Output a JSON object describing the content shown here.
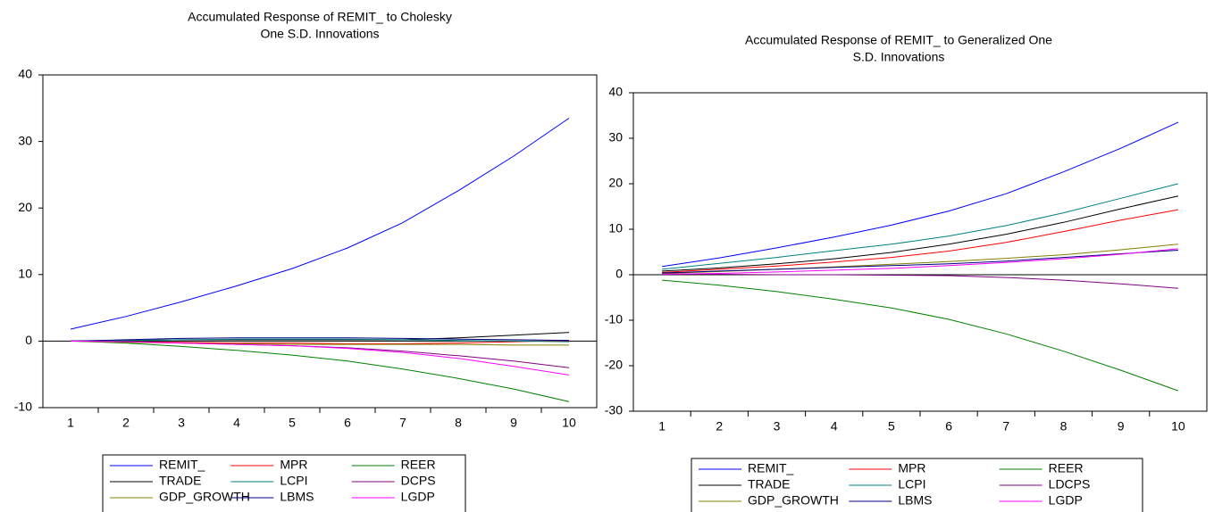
{
  "chart_data": [
    {
      "type": "line",
      "title": [
        "Accumulated Response of REMIT_ to Cholesky",
        "One S.D. Innovations"
      ],
      "categories": [
        1,
        2,
        3,
        4,
        5,
        6,
        7,
        8,
        9,
        10
      ],
      "ylim": [
        -10,
        40
      ],
      "yticks": [
        -10,
        0,
        10,
        20,
        30,
        40
      ],
      "series": [
        {
          "name": "REMIT_",
          "color": "#0000ff",
          "values": [
            1.8,
            3.7,
            5.9,
            8.3,
            10.9,
            14.0,
            17.8,
            22.6,
            27.8,
            33.5
          ]
        },
        {
          "name": "MPR",
          "color": "#ff0000",
          "values": [
            0,
            -0.1,
            -0.2,
            -0.3,
            -0.3,
            -0.4,
            -0.4,
            -0.3,
            -0.1,
            0.1
          ]
        },
        {
          "name": "REER",
          "color": "#008000",
          "values": [
            0,
            -0.3,
            -0.8,
            -1.4,
            -2.1,
            -3.0,
            -4.2,
            -5.6,
            -7.2,
            -9.1
          ]
        },
        {
          "name": "TRADE",
          "color": "#000000",
          "values": [
            0,
            0.1,
            0.2,
            0.2,
            0.2,
            0.2,
            0.2,
            0.5,
            0.9,
            1.3
          ]
        },
        {
          "name": "LCPI",
          "color": "#008080",
          "values": [
            0,
            0.1,
            0.2,
            0.3,
            0.3,
            0.3,
            0.2,
            0.1,
            0,
            -0.1
          ]
        },
        {
          "name": "DCPS",
          "color": "#800080",
          "values": [
            0,
            -0.1,
            -0.3,
            -0.5,
            -0.7,
            -1.0,
            -1.5,
            -2.2,
            -3.0,
            -4.0
          ]
        },
        {
          "name": "GDP_GROWTH",
          "color": "#808000",
          "values": [
            0,
            -0.2,
            -0.3,
            -0.4,
            -0.5,
            -0.5,
            -0.5,
            -0.5,
            -0.6,
            -0.6
          ]
        },
        {
          "name": "LBMS",
          "color": "#000080",
          "values": [
            0,
            0.2,
            0.4,
            0.5,
            0.5,
            0.5,
            0.4,
            0.3,
            0.2,
            0.1
          ]
        },
        {
          "name": "LGDP",
          "color": "#ff00ff",
          "values": [
            0,
            -0.1,
            -0.3,
            -0.5,
            -0.7,
            -1.1,
            -1.7,
            -2.6,
            -3.8,
            -5.1
          ]
        }
      ]
    },
    {
      "type": "line",
      "title": [
        "Accumulated Response of REMIT_ to Generalized One",
        "S.D. Innovations"
      ],
      "categories": [
        1,
        2,
        3,
        4,
        5,
        6,
        7,
        8,
        9,
        10
      ],
      "ylim": [
        -30,
        40
      ],
      "yticks": [
        -30,
        -20,
        -10,
        0,
        10,
        20,
        30,
        40
      ],
      "series": [
        {
          "name": "REMIT_",
          "color": "#0000ff",
          "values": [
            1.8,
            3.7,
            5.9,
            8.3,
            10.9,
            14.0,
            17.8,
            22.6,
            27.8,
            33.5
          ]
        },
        {
          "name": "MPR",
          "color": "#ff0000",
          "values": [
            0.5,
            1.2,
            1.9,
            2.8,
            3.8,
            5.2,
            7.1,
            9.5,
            12.0,
            14.3
          ]
        },
        {
          "name": "REER",
          "color": "#008000",
          "values": [
            -1.2,
            -2.3,
            -3.7,
            -5.4,
            -7.3,
            -9.8,
            -13.0,
            -16.8,
            -21.0,
            -25.5
          ]
        },
        {
          "name": "TRADE",
          "color": "#000000",
          "values": [
            0.8,
            1.5,
            2.4,
            3.5,
            4.9,
            6.7,
            8.9,
            11.5,
            14.5,
            17.3
          ]
        },
        {
          "name": "LCPI",
          "color": "#008080",
          "values": [
            1.2,
            2.5,
            3.8,
            5.3,
            6.7,
            8.5,
            10.8,
            13.6,
            16.8,
            20.0
          ]
        },
        {
          "name": "LDCPS",
          "color": "#800080",
          "values": [
            0.2,
            0.1,
            0,
            0,
            -0.1,
            -0.2,
            -0.6,
            -1.2,
            -2.0,
            -3.0
          ]
        },
        {
          "name": "GDP_GROWTH",
          "color": "#808000",
          "values": [
            0.3,
            0.7,
            1.2,
            1.7,
            2.3,
            2.9,
            3.6,
            4.4,
            5.5,
            6.7
          ]
        },
        {
          "name": "LBMS",
          "color": "#000080",
          "values": [
            0.4,
            0.8,
            1.2,
            1.6,
            2.0,
            2.4,
            3.0,
            3.8,
            4.6,
            5.4
          ]
        },
        {
          "name": "LGDP",
          "color": "#ff00ff",
          "values": [
            0.1,
            0.3,
            0.6,
            1.0,
            1.4,
            2.0,
            2.7,
            3.5,
            4.5,
            5.7
          ]
        }
      ]
    }
  ]
}
